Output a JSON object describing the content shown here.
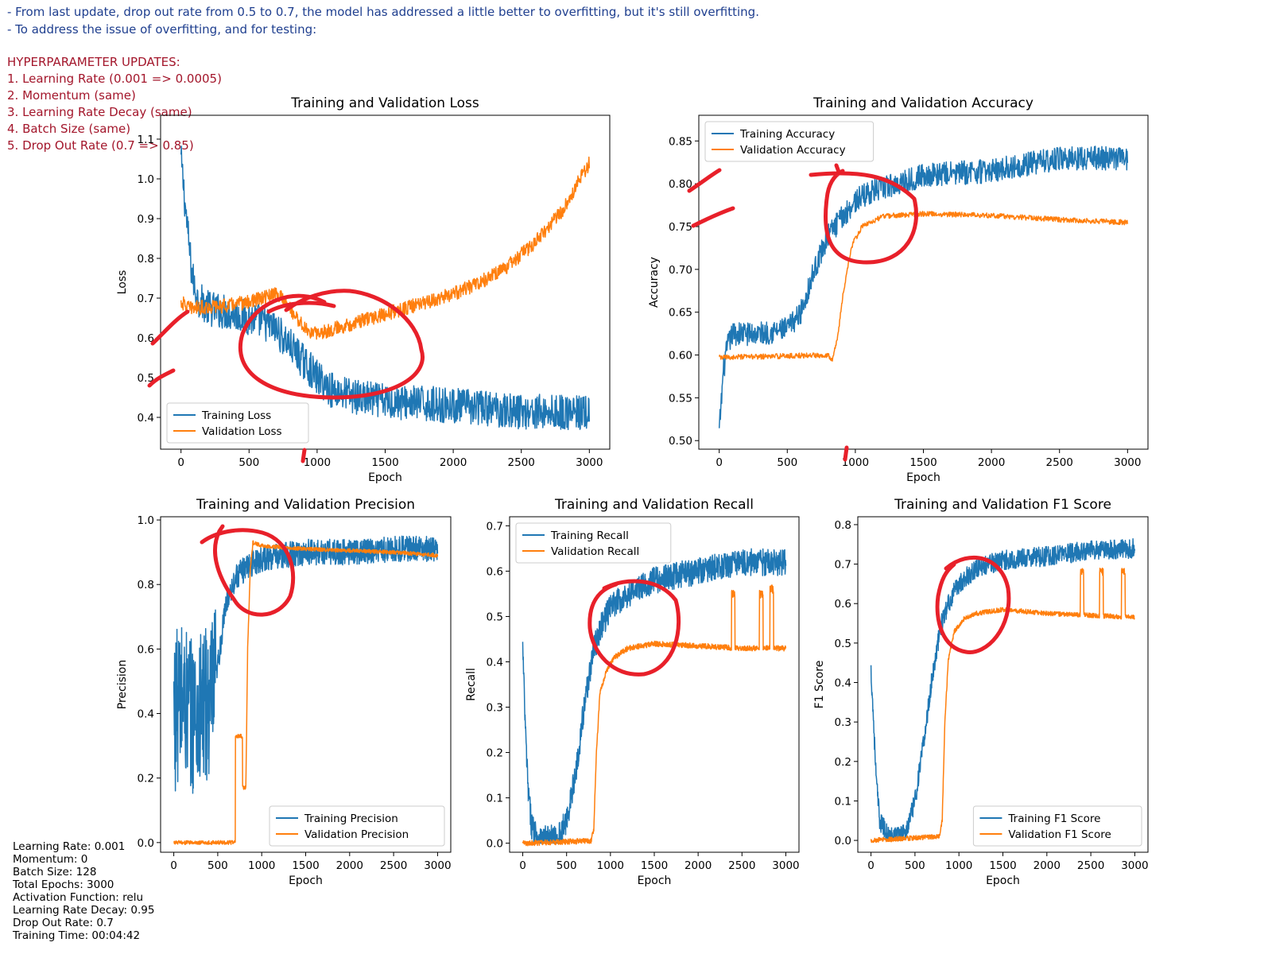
{
  "notes": {
    "lines": [
      "- From last update, drop out rate from 0.5 to 0.7, the model has addressed a little better to overfitting, but it's still overfitting.",
      "- To address the issue of overfitting, and for testing:"
    ],
    "updates_title": "HYPERPARAMETER UPDATES:",
    "updates": [
      "1. Learning Rate (0.001 => 0.0005)",
      "2. Momentum (same)",
      "3. Learning Rate Decay (same)",
      "4. Batch Size (same)",
      "5. Drop Out Rate (0.7 => 0.85)"
    ]
  },
  "settings": [
    "Learning Rate: 0.001",
    "Momentum: 0",
    "Batch Size: 128",
    "Total Epochs: 3000",
    "Activation Function: relu",
    "Learning Rate Decay: 0.95",
    "Drop Out Rate: 0.7",
    "Training Time: 00:04:42"
  ],
  "colors": {
    "training": "#1f77b4",
    "validation": "#ff7f0e",
    "annotation": "#e8202a",
    "axes": "#000000"
  },
  "chart_data": [
    {
      "id": "loss",
      "type": "line",
      "title": "Training and Validation Loss",
      "xlabel": "Epoch",
      "ylabel": "Loss",
      "xlim": [
        -150,
        3150
      ],
      "ylim": [
        0.32,
        1.16
      ],
      "xticks": [
        0,
        500,
        1000,
        1500,
        2000,
        2500,
        3000
      ],
      "yticks": [
        0.4,
        0.5,
        0.6,
        0.7,
        0.8,
        0.9,
        1.0,
        1.1
      ],
      "ytick_decimals": 1,
      "legend": "lower-left",
      "series": [
        {
          "name": "Training Loss",
          "role": "training",
          "noise": 0.045,
          "keypoints": [
            [
              0,
              1.05
            ],
            [
              40,
              0.9
            ],
            [
              80,
              0.76
            ],
            [
              120,
              0.7
            ],
            [
              200,
              0.675
            ],
            [
              400,
              0.66
            ],
            [
              600,
              0.64
            ],
            [
              700,
              0.62
            ],
            [
              850,
              0.56
            ],
            [
              1000,
              0.5
            ],
            [
              1100,
              0.47
            ],
            [
              1300,
              0.45
            ],
            [
              1500,
              0.44
            ],
            [
              2000,
              0.43
            ],
            [
              2500,
              0.415
            ],
            [
              3000,
              0.41
            ]
          ]
        },
        {
          "name": "Validation Loss",
          "role": "validation",
          "noise": 0.018,
          "keypoints": [
            [
              0,
              0.69
            ],
            [
              60,
              0.675
            ],
            [
              300,
              0.68
            ],
            [
              500,
              0.69
            ],
            [
              650,
              0.705
            ],
            [
              700,
              0.71
            ],
            [
              760,
              0.695
            ],
            [
              850,
              0.65
            ],
            [
              920,
              0.62
            ],
            [
              980,
              0.61
            ],
            [
              1100,
              0.62
            ],
            [
              1300,
              0.64
            ],
            [
              1500,
              0.66
            ],
            [
              1700,
              0.68
            ],
            [
              1900,
              0.7
            ],
            [
              2000,
              0.71
            ],
            [
              2200,
              0.74
            ],
            [
              2400,
              0.78
            ],
            [
              2600,
              0.84
            ],
            [
              2800,
              0.92
            ],
            [
              2900,
              0.98
            ],
            [
              3000,
              1.04
            ]
          ]
        }
      ]
    },
    {
      "id": "accuracy",
      "type": "line",
      "title": "Training and Validation Accuracy",
      "xlabel": "Epoch",
      "ylabel": "Accuracy",
      "xlim": [
        -150,
        3150
      ],
      "ylim": [
        0.49,
        0.88
      ],
      "xticks": [
        0,
        500,
        1000,
        1500,
        2000,
        2500,
        3000
      ],
      "yticks": [
        0.5,
        0.55,
        0.6,
        0.65,
        0.7,
        0.75,
        0.8,
        0.85
      ],
      "ytick_decimals": 2,
      "legend": "top-left",
      "series": [
        {
          "name": "Training Accuracy",
          "role": "training",
          "noise": 0.014,
          "keypoints": [
            [
              0,
              0.51
            ],
            [
              30,
              0.58
            ],
            [
              60,
              0.61
            ],
            [
              100,
              0.625
            ],
            [
              300,
              0.625
            ],
            [
              500,
              0.63
            ],
            [
              600,
              0.65
            ],
            [
              700,
              0.7
            ],
            [
              800,
              0.74
            ],
            [
              900,
              0.76
            ],
            [
              1000,
              0.78
            ],
            [
              1100,
              0.79
            ],
            [
              1300,
              0.8
            ],
            [
              1500,
              0.81
            ],
            [
              2000,
              0.815
            ],
            [
              2500,
              0.83
            ],
            [
              3000,
              0.83
            ]
          ]
        },
        {
          "name": "Validation Accuracy",
          "role": "validation",
          "noise": 0.003,
          "keypoints": [
            [
              0,
              0.597
            ],
            [
              800,
              0.6
            ],
            [
              830,
              0.595
            ],
            [
              870,
              0.62
            ],
            [
              900,
              0.66
            ],
            [
              940,
              0.7
            ],
            [
              980,
              0.73
            ],
            [
              1050,
              0.75
            ],
            [
              1200,
              0.762
            ],
            [
              1500,
              0.765
            ],
            [
              2000,
              0.763
            ],
            [
              2500,
              0.758
            ],
            [
              3000,
              0.755
            ]
          ]
        }
      ]
    },
    {
      "id": "precision",
      "type": "line",
      "title": "Training and Validation Precision",
      "xlabel": "Epoch",
      "ylabel": "Precision",
      "xlim": [
        -150,
        3150
      ],
      "ylim": [
        -0.03,
        1.01
      ],
      "xticks": [
        0,
        500,
        1000,
        1500,
        2000,
        2500,
        3000
      ],
      "yticks": [
        0.0,
        0.2,
        0.4,
        0.6,
        0.8,
        1.0
      ],
      "ytick_decimals": 1,
      "legend": "lower-right",
      "series": [
        {
          "name": "Training Precision",
          "role": "training",
          "noise": 0.25,
          "noise_until": 480,
          "noise_after": 0.04,
          "clip": [
            0,
            0.97
          ],
          "keypoints": [
            [
              0,
              0.4
            ],
            [
              100,
              0.45
            ],
            [
              200,
              0.4
            ],
            [
              300,
              0.4
            ],
            [
              450,
              0.45
            ],
            [
              500,
              0.55
            ],
            [
              600,
              0.75
            ],
            [
              700,
              0.82
            ],
            [
              850,
              0.86
            ],
            [
              1000,
              0.88
            ],
            [
              1500,
              0.9
            ],
            [
              2000,
              0.9
            ],
            [
              2500,
              0.91
            ],
            [
              3000,
              0.91
            ]
          ]
        },
        {
          "name": "Validation Precision",
          "role": "validation",
          "noise": 0.006,
          "keypoints": [
            [
              0,
              0
            ],
            [
              699,
              0
            ],
            [
              700,
              0.33
            ],
            [
              780,
              0.33
            ],
            [
              781,
              0.17
            ],
            [
              820,
              0.17
            ],
            [
              840,
              0.6
            ],
            [
              870,
              0.85
            ],
            [
              900,
              0.93
            ],
            [
              1000,
              0.92
            ],
            [
              1500,
              0.91
            ],
            [
              2000,
              0.905
            ],
            [
              2500,
              0.9
            ],
            [
              3000,
              0.89
            ]
          ]
        }
      ]
    },
    {
      "id": "recall",
      "type": "line",
      "title": "Training and Validation Recall",
      "xlabel": "Epoch",
      "ylabel": "Recall",
      "xlim": [
        -150,
        3150
      ],
      "ylim": [
        -0.02,
        0.72
      ],
      "xticks": [
        0,
        500,
        1000,
        1500,
        2000,
        2500,
        3000
      ],
      "yticks": [
        0.0,
        0.1,
        0.2,
        0.3,
        0.4,
        0.5,
        0.6,
        0.7
      ],
      "ytick_decimals": 1,
      "legend": "top-left",
      "series": [
        {
          "name": "Training Recall",
          "role": "training",
          "noise": 0.03,
          "clip": [
            0,
            0.7
          ],
          "keypoints": [
            [
              0,
              0.43
            ],
            [
              30,
              0.25
            ],
            [
              60,
              0.12
            ],
            [
              100,
              0.04
            ],
            [
              200,
              0.01
            ],
            [
              400,
              0.01
            ],
            [
              500,
              0.05
            ],
            [
              600,
              0.15
            ],
            [
              700,
              0.3
            ],
            [
              800,
              0.42
            ],
            [
              900,
              0.48
            ],
            [
              1000,
              0.52
            ],
            [
              1200,
              0.55
            ],
            [
              1500,
              0.58
            ],
            [
              2000,
              0.6
            ],
            [
              2500,
              0.62
            ],
            [
              3000,
              0.62
            ]
          ]
        },
        {
          "name": "Validation Recall",
          "role": "validation",
          "noise": 0.006,
          "spikes": [
            [
              2380,
              2420,
              0.55
            ],
            [
              2700,
              2740,
              0.55
            ],
            [
              2820,
              2860,
              0.56
            ]
          ],
          "keypoints": [
            [
              0,
              0
            ],
            [
              780,
              0.005
            ],
            [
              810,
              0.03
            ],
            [
              840,
              0.2
            ],
            [
              880,
              0.33
            ],
            [
              950,
              0.38
            ],
            [
              1050,
              0.41
            ],
            [
              1200,
              0.43
            ],
            [
              1500,
              0.44
            ],
            [
              2000,
              0.435
            ],
            [
              2500,
              0.43
            ],
            [
              3000,
              0.43
            ]
          ]
        }
      ]
    },
    {
      "id": "f1",
      "type": "line",
      "title": "Training and Validation F1 Score",
      "xlabel": "Epoch",
      "ylabel": "F1 Score",
      "xlim": [
        -150,
        3150
      ],
      "ylim": [
        -0.03,
        0.82
      ],
      "xticks": [
        0,
        500,
        1000,
        1500,
        2000,
        2500,
        3000
      ],
      "yticks": [
        0.0,
        0.1,
        0.2,
        0.3,
        0.4,
        0.5,
        0.6,
        0.7,
        0.8
      ],
      "ytick_decimals": 1,
      "legend": "lower-right",
      "series": [
        {
          "name": "Training F1 Score",
          "role": "training",
          "noise": 0.025,
          "clip": [
            0,
            0.78
          ],
          "keypoints": [
            [
              0,
              0.43
            ],
            [
              30,
              0.3
            ],
            [
              60,
              0.15
            ],
            [
              100,
              0.05
            ],
            [
              200,
              0.01
            ],
            [
              400,
              0.02
            ],
            [
              500,
              0.1
            ],
            [
              600,
              0.25
            ],
            [
              700,
              0.42
            ],
            [
              800,
              0.55
            ],
            [
              900,
              0.61
            ],
            [
              1000,
              0.65
            ],
            [
              1200,
              0.69
            ],
            [
              1500,
              0.71
            ],
            [
              2000,
              0.72
            ],
            [
              2500,
              0.735
            ],
            [
              3000,
              0.74
            ]
          ]
        },
        {
          "name": "Validation F1 Score",
          "role": "validation",
          "noise": 0.006,
          "spikes": [
            [
              2380,
              2420,
              0.68
            ],
            [
              2600,
              2640,
              0.68
            ],
            [
              2850,
              2890,
              0.68
            ]
          ],
          "keypoints": [
            [
              0,
              0
            ],
            [
              780,
              0.01
            ],
            [
              810,
              0.05
            ],
            [
              840,
              0.3
            ],
            [
              880,
              0.46
            ],
            [
              950,
              0.53
            ],
            [
              1050,
              0.56
            ],
            [
              1200,
              0.575
            ],
            [
              1500,
              0.585
            ],
            [
              2000,
              0.575
            ],
            [
              2500,
              0.57
            ],
            [
              3000,
              0.565
            ]
          ]
        }
      ]
    }
  ]
}
